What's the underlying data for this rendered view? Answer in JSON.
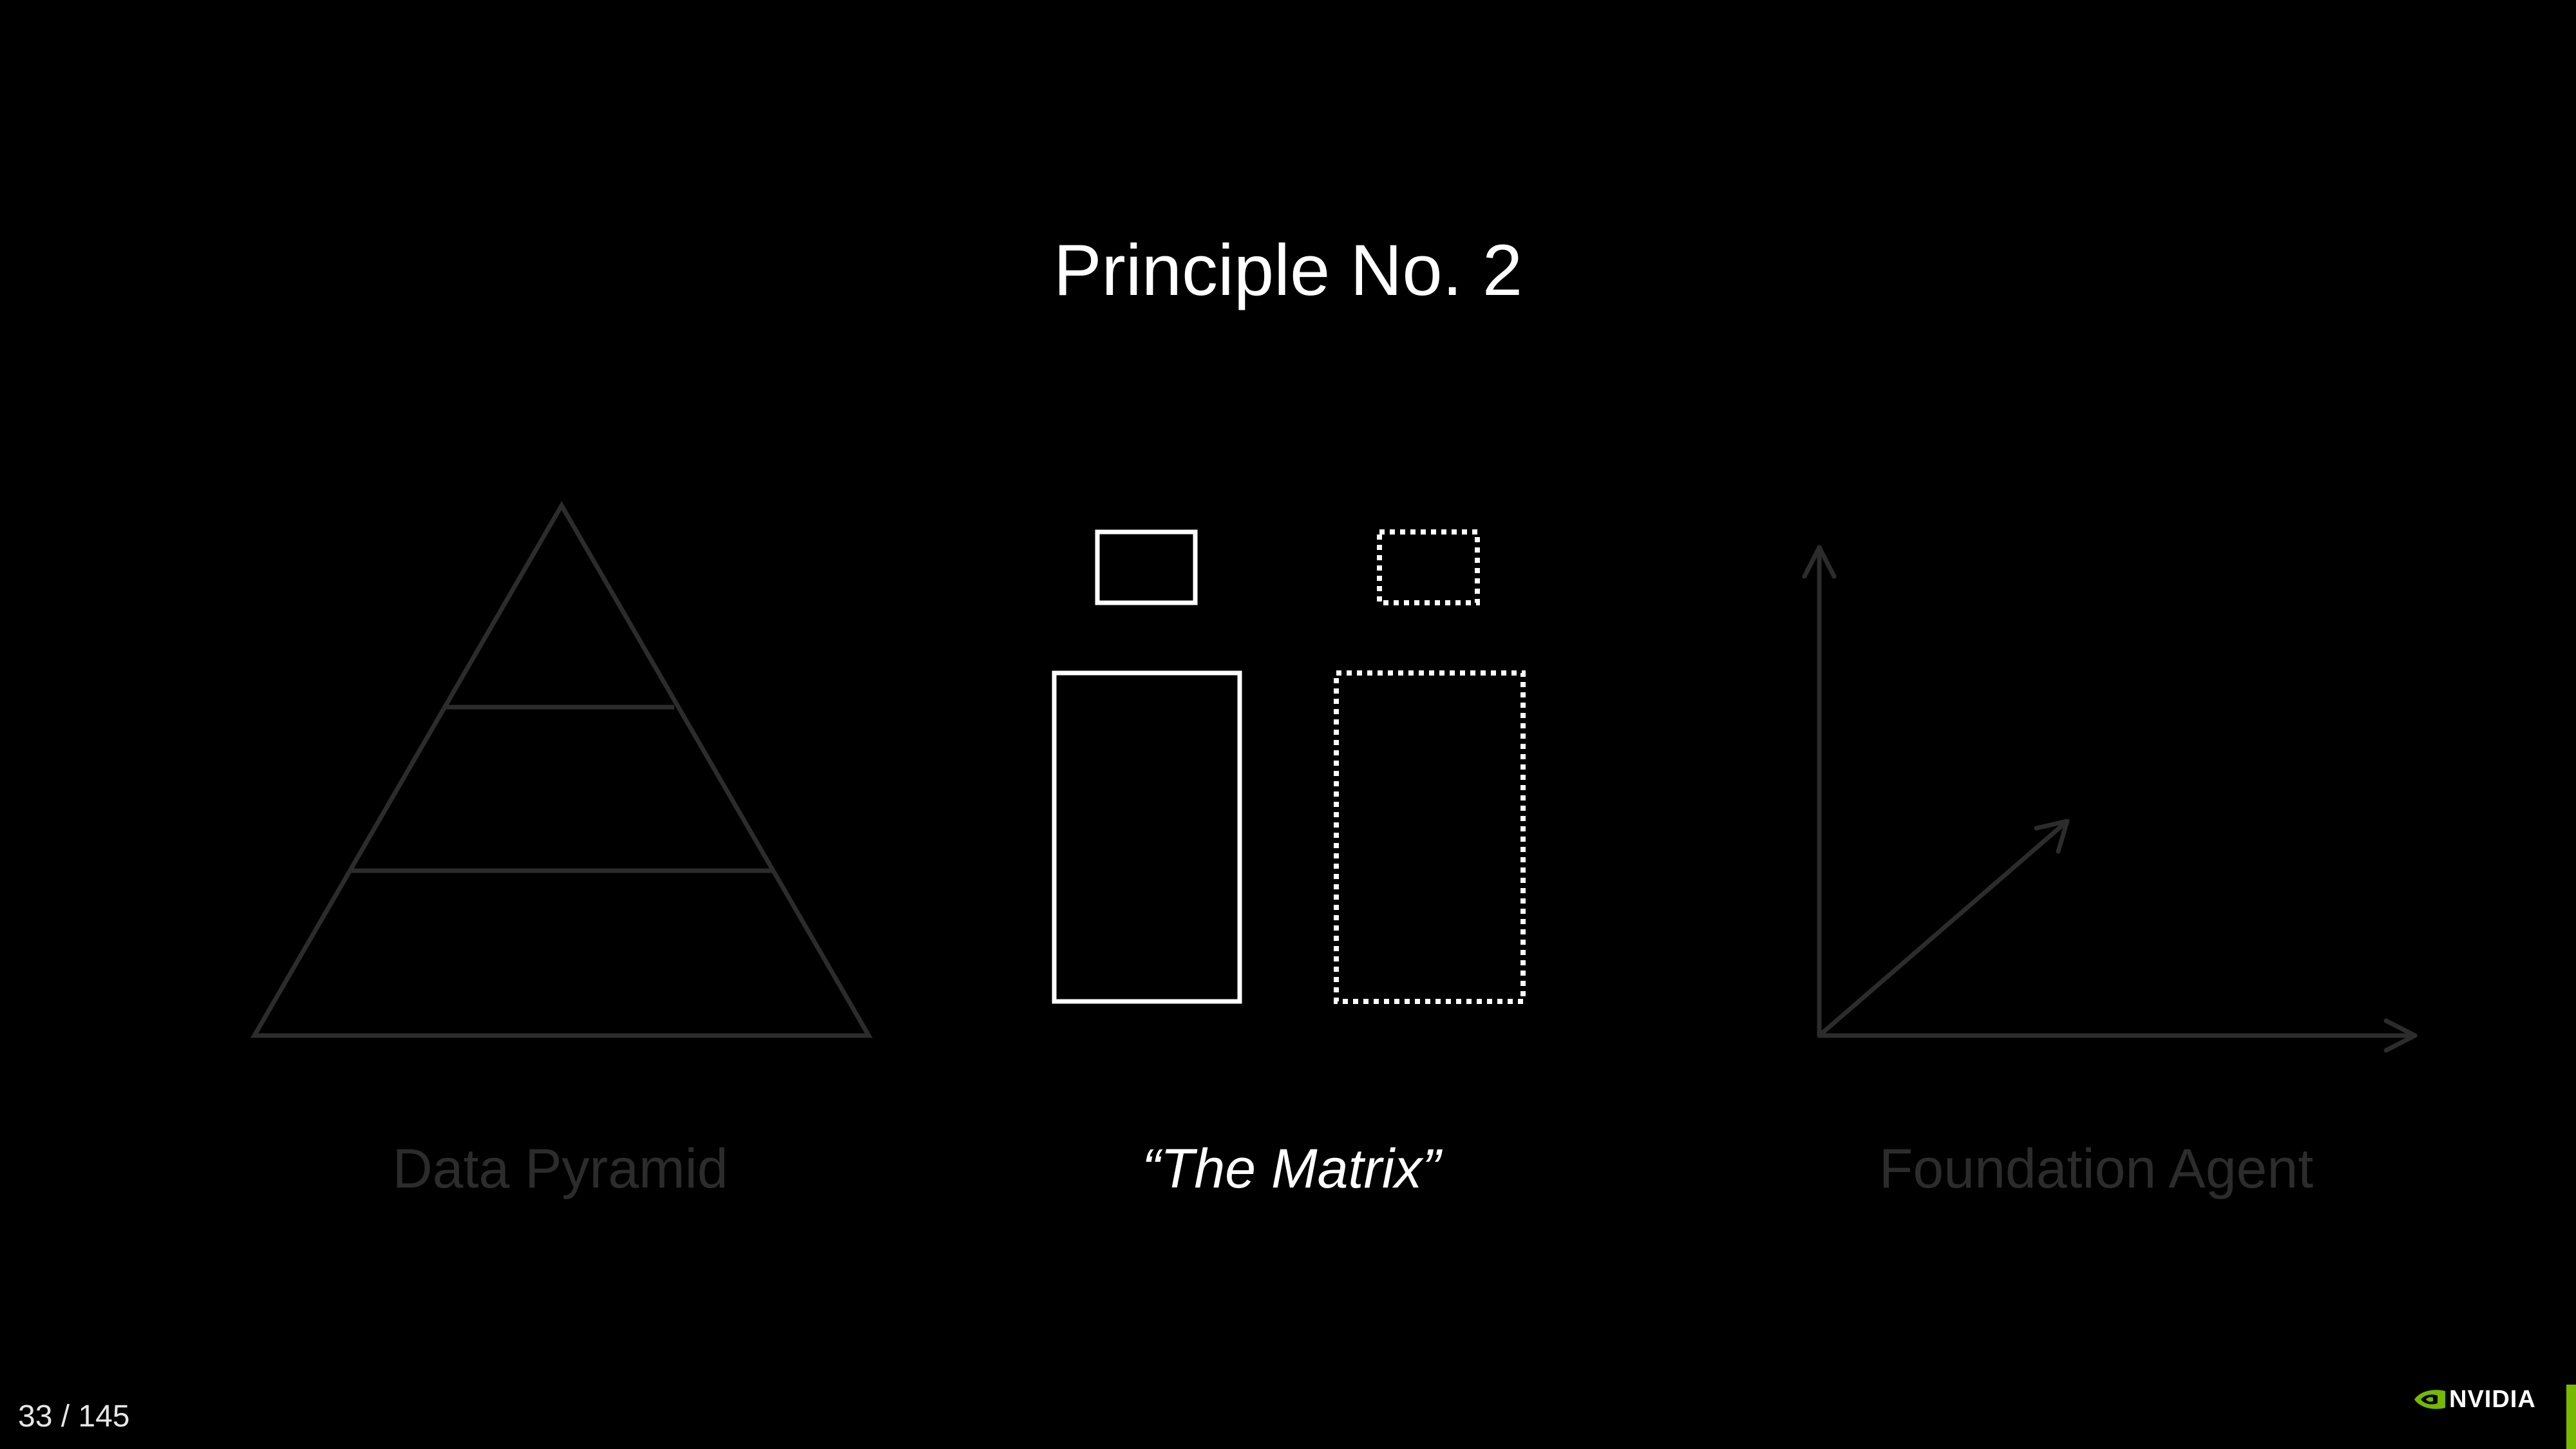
{
  "slide": {
    "title": "Principle No. 2",
    "captions": {
      "data_pyramid": "Data Pyramid",
      "the_matrix": "“The Matrix”",
      "foundation_agent": "Foundation Agent"
    },
    "page_counter": "33 / 145",
    "logo_text": "NVIDIA"
  },
  "colors": {
    "background": "#000000",
    "dim_stroke": "#2c2c2c",
    "active_stroke": "#ffffff",
    "brand_accent": "#76b900"
  },
  "icons": {
    "logo": "nvidia-eye-icon",
    "pyramid": "data-pyramid-icon",
    "matrix": "matrix-boxes-icon",
    "axes": "vector-axes-icon"
  }
}
